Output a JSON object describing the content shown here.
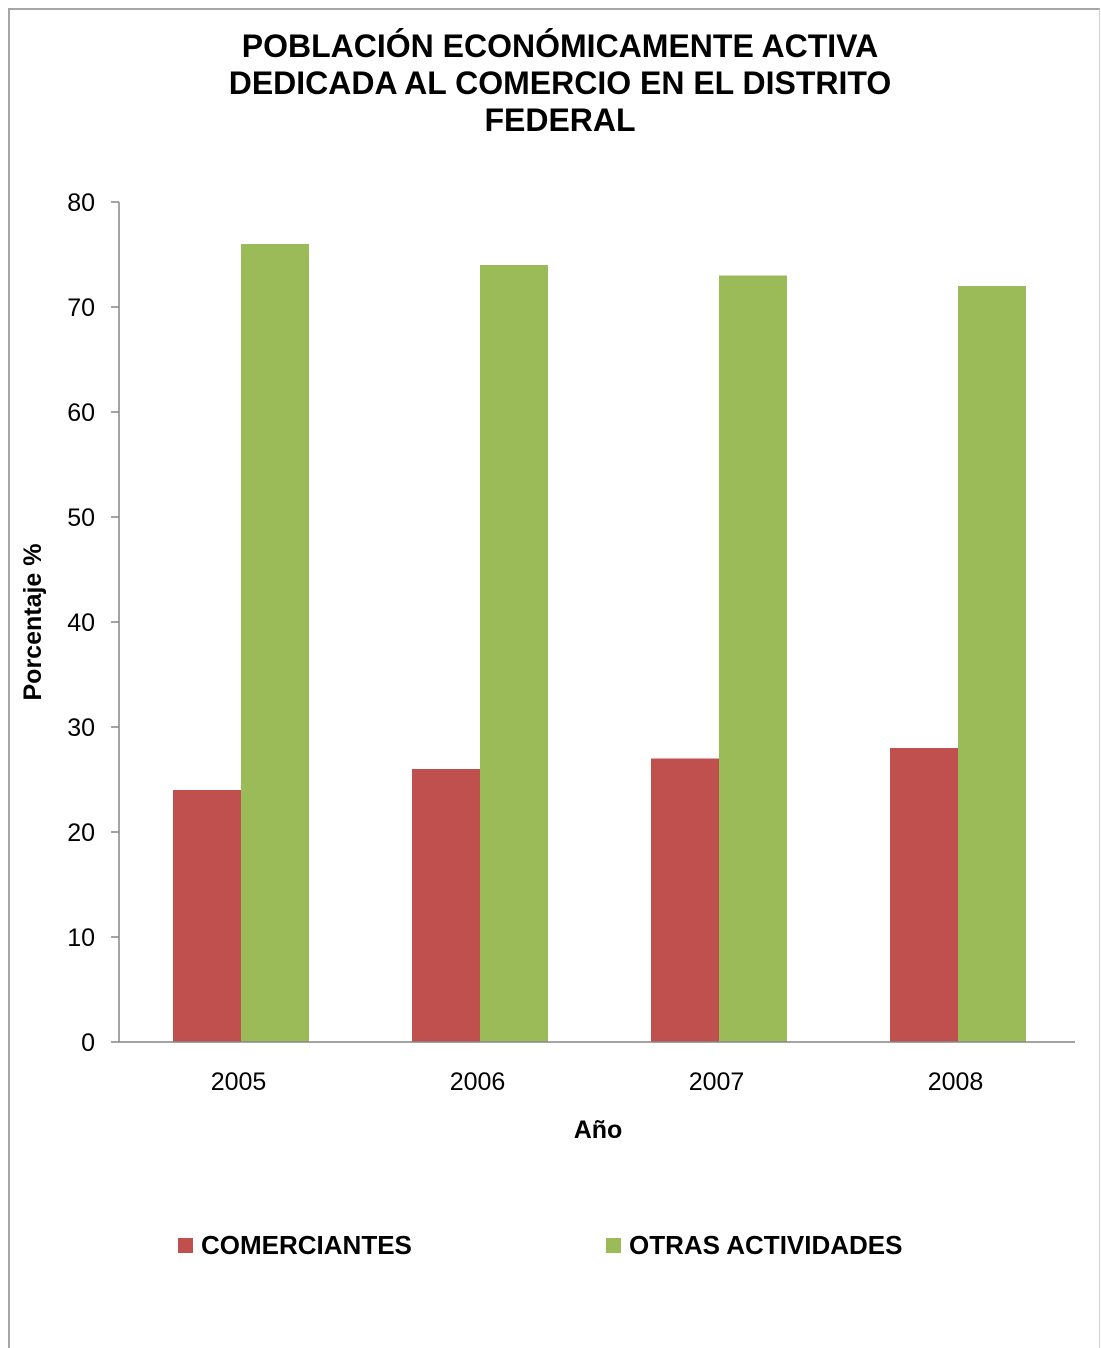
{
  "chart_data": {
    "type": "bar",
    "title": [
      "POBLACIÓN ECONÓMICAMENTE ACTIVA",
      "DEDICADA AL COMERCIO EN EL DISTRITO",
      "FEDERAL"
    ],
    "xlabel": "Año",
    "ylabel": "Porcentaje  %",
    "categories": [
      "2005",
      "2006",
      "2007",
      "2008"
    ],
    "ylim": [
      0,
      80
    ],
    "yticks": [
      0,
      10,
      20,
      30,
      40,
      50,
      60,
      70,
      80
    ],
    "grid": false,
    "legend_position": "bottom",
    "series": [
      {
        "name": "COMERCIANTES",
        "values": [
          24,
          26,
          27,
          28
        ],
        "color": "#c0504d"
      },
      {
        "name": "OTRAS ACTIVIDADES",
        "values": [
          76,
          74,
          73,
          72
        ],
        "color": "#9bbb59"
      }
    ]
  }
}
